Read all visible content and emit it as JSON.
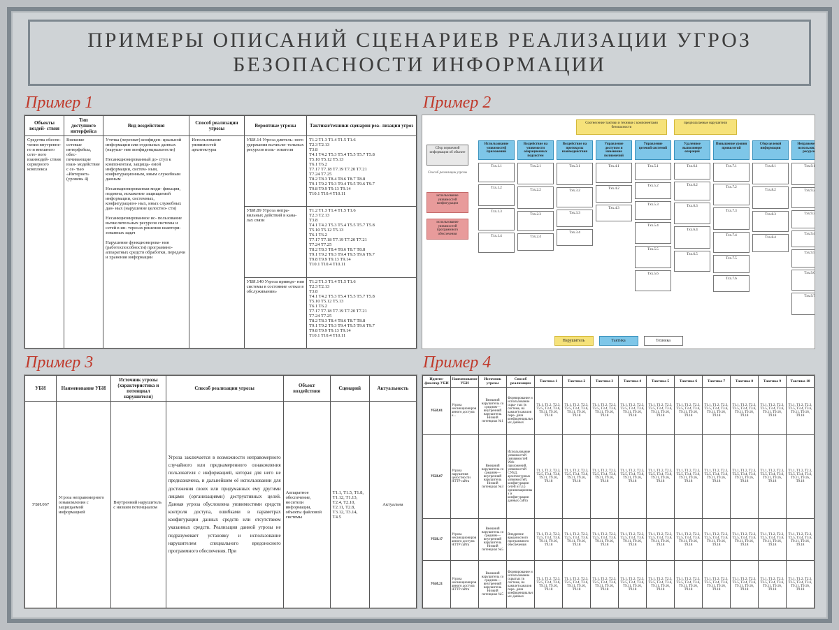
{
  "title": "ПРИМЕРЫ ОПИСАНИЙ СЦЕНАРИЕВ РЕАЛИЗАЦИИ УГРОЗ БЕЗОПАСНОСТИ ИНФОРМАЦИИ",
  "labels": {
    "ex1": "Пример 1",
    "ex2": "Пример 2",
    "ex3": "Пример 3",
    "ex4": "Пример 4"
  },
  "ex1": {
    "headers": [
      "Объекты воздей- ствия",
      "Тип доступного интерфейса",
      "Вид воздействия",
      "Способ реализации угрозы",
      "Вероятные угрозы",
      "Тактики/техники сценария реа- лизации угроз"
    ],
    "col0": "Средства обеспе- чения внутренне- го и внешнего сете- вого взаимодей- ствия серверного комплекса",
    "col1": "Внешние сетевые интерфейсы, обес- печивающие взаи- модействие с се- тью «Интернет» (уровень 4)",
    "col2": "Утечка (перехват) конфиден- циальной информации или отдельных данных (наруше- ние конфиденциальности)\n\nНесанкционированный до- ступ к компонентам, защища- емой информации, систем- ным, конфигурационным, иным служебным данным\n\nНесанкционированная моди- фикация, подмена, искажение защищаемой информации, системных, конфигурацион- ных, иных служебных дан- ных (нарушение целостно- сти)\n\nНесанкционированное ис- пользование вычислительных ресурсов системы и сетей в ин- тересах решения неавтори- зованных задач\n\nНарушение функционирова- ния (работоспособности) программно-аппаратных средств обработки, передачи и хранения информации",
    "col3": "Использование уязвимостей архитектуры",
    "threats": [
      "УБИ.14 Угроза длитель- ного удержания вычисли- тельных ресурсов поль- зователя",
      "УБИ.89 Угроза непра- вильных действий в кана- лах связи",
      "УБИ.140 Угроза приведе- ния системы в состояние «отказ в обслуживании»"
    ],
    "tactics": "T1.2 T1.3 T1.4 T1.5 T1.6\nT2.3 T2.13\nT3.8\nT4.1 T4.2 T5.3 T5.4 T5.5 T5.7 T5.8\nT5.10 T5.12 T5.13\nT6.1 T6.2\nT7.17 T7.18 T7.19 T7.20 T7.21\nT7.24 T7.25\nT8.2 T8.3 T8.4 T8.6 T8.7 T8.8\nT9.1 T9.2 T9.3 T9.4 T9.5 T9.6 T9.7\nT9.8 T9.9 T9.13 T9.14\nT10.1 T10.4 T10.11"
  },
  "ex2": {
    "top_yellow_a": "Соотнесение тактики и техники с компонентами безопасности",
    "top_yellow_b": "предполагаемые нарушители",
    "left_grey": "Сбор первичной информации об объекте",
    "left_label": "Способ реализации угрозы",
    "left_pink_a": "использование уязвимостей конфигурации",
    "left_pink_b": "использование уязвимостей программного обеспечения",
    "col_heads": [
      "Использование уязвимостей приложений",
      "Воздействие на уязвимости операционных подсистем",
      "Воздействие на протоколы взаимодействия",
      "Управление доступом и изменение полномочий",
      "Управление целевой системой",
      "Удаленное выполнение операций",
      "Повышение уровня привилегий",
      "Сбор целевой информации",
      "Неправомерное использование ресурсов"
    ],
    "cell": "Txx",
    "legend": {
      "a": "Нарушитель",
      "b": "Тактика",
      "c": "Техника"
    }
  },
  "ex3": {
    "headers": [
      "УБИ",
      "Наименование УБИ",
      "Источник угрозы (характеристика и потенциал нарушителя)",
      "Способ реализации угрозы",
      "Объект воздействия",
      "Сценарий",
      "Актуальность"
    ],
    "row": {
      "id": "УБИ.067",
      "name": "Угроза неправомерного ознакомления с защищаемой информацией",
      "src": "Внутренний нарушитель с низким потенциалом",
      "way": "Угроза заключается в возможности неправомерного случайного или преднамеренного ознакомления пользователя с информацией, которая для него не предназначена, и дальнейшем её использовании для достижения своих или придуманных ему другими лицами (организациями) деструктивных целей. Данная угроза обусловлена уязвимостями средств контроля доступа, ошибками в параметрах конфигурации данных средств или отсутствием указанных средств. Реализация данной угрозы не подразумевает установку и использование нарушителем специального вредоносного программного обеспечения. При",
      "obj": "Аппаратное обеспечение, носители информации, объекты файловой системы",
      "scn": "T1.1, T1.5, T1.8, T1.12, T1.13, T2.4, T2.10, T2.11, T2.8, T3.12, T3.14, T4.5",
      "act": "Актуальна"
    }
  },
  "ex4": {
    "headers": [
      "Иденти- фикатор УБИ",
      "Наименование УБИ",
      "Источник угрозы",
      "Способ реализации",
      "Тактика 1",
      "Тактика 2",
      "Тактика 3",
      "Тактика 4",
      "Тактика 5",
      "Тактика 6",
      "Тактика 7",
      "Тактика 8",
      "Тактика 9",
      "Тактика 10"
    ],
    "rows": [
      {
        "id": "УБИ.01",
        "name": "Угроза несанкционированного доступа к...",
        "src": "Внешний нарушитель со средним— внутренний нарушитель Низкий потенциал №1",
        "way": "Формирование и использование скры- тых (в системе, на канале) каналов пере- дачи конфиденциальных данных"
      },
      {
        "id": "УБИ.07",
        "name": "Угроза нарушения целостности HTTP сайта",
        "src": "Внешний нарушитель со средним— внутренний нарушитель Низкий потенциал №3",
        "way": "Использование уязвимостей (уязвимостей Web-приложений, уязвимостей СУБД, архитектурных уязвимостей, конфигурации сетей и т.п.) организационных и конфигурации данных сайта"
      },
      {
        "id": "УБИ.17",
        "name": "Угроза несанкционированного доступа HTTP сайта",
        "src": "Внешний нарушитель со средним— внутренний нарушитель Низкий потенциал №5",
        "way": "Внедрение вредоносного программного обеспечения"
      },
      {
        "id": "УБИ.21",
        "name": "Угроза несанкционированного доступа HTTP сайта",
        "src": "Внешний нарушитель со средним— внутренний нарушитель Низкий потенциал №5",
        "way": "Формирование и использование скрытых (в системе, на канале) каналов пере- дачи конфиденциальных данных"
      }
    ],
    "cell": "T1.1, T1.2, T2.3, T2.5, T3.4, T3.6, T9.11, T9.16, T9.18"
  }
}
